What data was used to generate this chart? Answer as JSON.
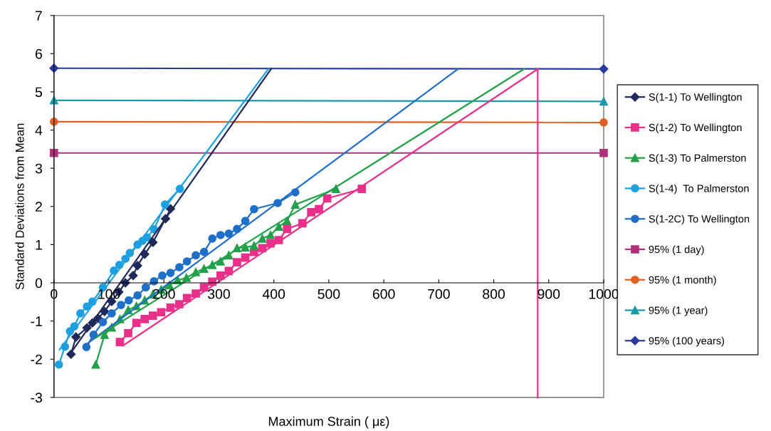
{
  "chart_data": {
    "type": "line",
    "xlabel": "Maximum Strain ( με)",
    "ylabel": "Standard Deviations from Mean",
    "xlim": [
      0,
      1000
    ],
    "ylim": [
      -3,
      7
    ],
    "xticks": [
      0,
      100,
      200,
      300,
      400,
      500,
      600,
      700,
      800,
      900,
      1000
    ],
    "yticks": [
      -3,
      -2,
      -1,
      0,
      1,
      2,
      3,
      4,
      5,
      6,
      7
    ],
    "grid": false,
    "legend": "right",
    "series": [
      {
        "name": "S(1-1) To Wellington",
        "color": "#1f2a5a",
        "marker": "diamond",
        "x": [
          31,
          40,
          60,
          70,
          80,
          92,
          105,
          118,
          130,
          144,
          152,
          165,
          180,
          203,
          212
        ],
        "values": [
          -1.87,
          -1.42,
          -1.18,
          -1.05,
          -0.93,
          -0.75,
          -0.49,
          -0.24,
          0,
          0.19,
          0.45,
          0.75,
          1.06,
          1.68,
          1.94
        ]
      },
      {
        "name": "S(1-2) To Wellington",
        "color": "#e8308a",
        "marker": "square",
        "x": [
          120,
          135,
          150,
          165,
          180,
          195,
          212,
          228,
          242,
          258,
          273,
          288,
          303,
          318,
          333,
          348,
          364,
          379,
          394,
          409,
          424,
          452,
          468,
          482,
          497,
          560
        ],
        "values": [
          -1.55,
          -1.32,
          -1.05,
          -0.95,
          -0.86,
          -0.77,
          -0.65,
          -0.56,
          -0.4,
          -0.28,
          -0.12,
          0.03,
          0.19,
          0.31,
          0.54,
          0.66,
          0.81,
          0.91,
          1.03,
          1.12,
          1.41,
          1.56,
          1.85,
          1.93,
          2.21,
          2.46
        ]
      },
      {
        "name": "S(1-3) To Palmerston",
        "color": "#22a04a",
        "marker": "triangle",
        "x": [
          76,
          92,
          105,
          120,
          135,
          150,
          165,
          180,
          195,
          210,
          225,
          241,
          258,
          273,
          288,
          303,
          318,
          333,
          348,
          364,
          379,
          394,
          409,
          424,
          439,
          513
        ],
        "values": [
          -2.14,
          -1.36,
          -1.17,
          -0.95,
          -0.71,
          -0.61,
          -0.46,
          -0.3,
          -0.18,
          -0.06,
          0.07,
          0.13,
          0.28,
          0.37,
          0.47,
          0.56,
          0.72,
          0.91,
          0.93,
          0.97,
          1.16,
          1.25,
          1.47,
          1.62,
          2.05,
          2.46
        ]
      },
      {
        "name": "S(1-4)  To Palmerston",
        "color": "#1ea0e0",
        "marker": "circle",
        "x": [
          9,
          20,
          29,
          37,
          48,
          60,
          70,
          89,
          109,
          119,
          130,
          138,
          152,
          161,
          169,
          182,
          202,
          229
        ],
        "values": [
          -2.14,
          -1.67,
          -1.27,
          -1.14,
          -0.8,
          -0.62,
          -0.49,
          -0.12,
          0.32,
          0.47,
          0.63,
          0.78,
          1.0,
          1.1,
          1.19,
          1.4,
          2.05,
          2.46
        ]
      },
      {
        "name": "S(1-2C) To Wellington",
        "color": "#1f6fc8",
        "marker": "circle",
        "x": [
          59,
          72,
          89,
          105,
          122,
          136,
          152,
          167,
          182,
          197,
          212,
          228,
          242,
          258,
          273,
          288,
          303,
          318,
          333,
          348,
          364,
          407,
          439
        ],
        "values": [
          -1.68,
          -1.36,
          -1.03,
          -0.8,
          -0.58,
          -0.46,
          -0.33,
          -0.12,
          0.04,
          0.19,
          0.26,
          0.41,
          0.56,
          0.72,
          0.81,
          1.16,
          1.25,
          1.29,
          1.41,
          1.62,
          1.93,
          2.09,
          2.37
        ]
      },
      {
        "name": "95% (1 day)",
        "color": "#b0307a",
        "marker": "square",
        "x": [
          0,
          1000
        ],
        "values": [
          3.4,
          3.4
        ]
      },
      {
        "name": "95% (1 month)",
        "color": "#e06020",
        "marker": "circle",
        "x": [
          0,
          1000
        ],
        "values": [
          4.22,
          4.2
        ]
      },
      {
        "name": "95% (1 year)",
        "color": "#1a9aa8",
        "marker": "triangle",
        "x": [
          0,
          1000
        ],
        "values": [
          4.78,
          4.75
        ]
      },
      {
        "name": "95% (100 years)",
        "color": "#2a3aa0",
        "marker": "diamond",
        "x": [
          0,
          1000
        ],
        "values": [
          5.62,
          5.6
        ]
      },
      {
        "color": "#1f2a5a",
        "marker": "none",
        "x": [
          30,
          395
        ],
        "values": [
          -1.85,
          5.6
        ]
      },
      {
        "color": "#1ea0e0",
        "marker": "none",
        "x": [
          10,
          390
        ],
        "values": [
          -1.75,
          5.6
        ]
      },
      {
        "color": "#1f6fc8",
        "marker": "none",
        "x": [
          60,
          735
        ],
        "values": [
          -1.6,
          5.6
        ]
      },
      {
        "color": "#22a04a",
        "marker": "none",
        "x": [
          75,
          855
        ],
        "values": [
          -1.45,
          5.6
        ]
      },
      {
        "color": "#e8308a",
        "marker": "none",
        "x": [
          125,
          880
        ],
        "values": [
          -1.65,
          5.6
        ]
      },
      {
        "color": "#e8308a",
        "marker": "none",
        "x": [
          880,
          880
        ],
        "values": [
          -3,
          5.6
        ]
      }
    ]
  }
}
